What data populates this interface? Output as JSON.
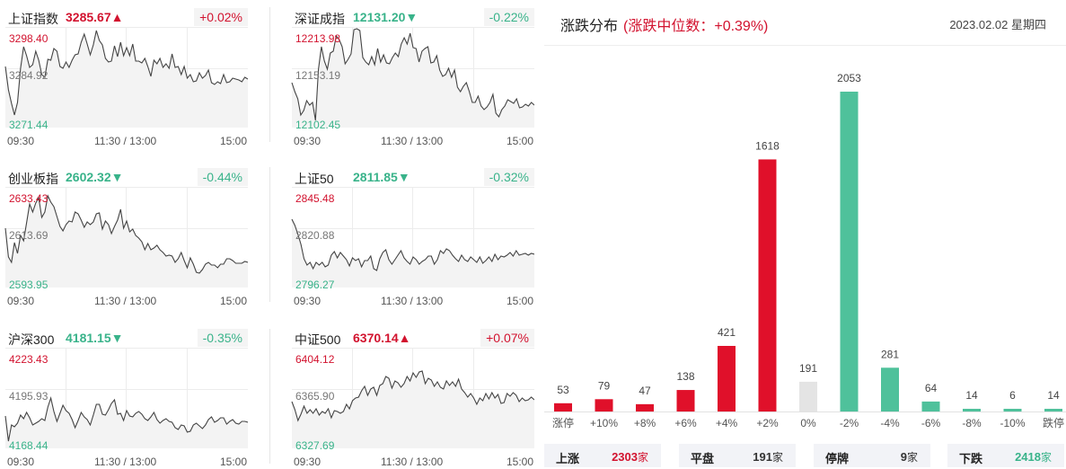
{
  "indices": [
    {
      "name": "上证指数",
      "value": "3285.67",
      "arrow": "▲",
      "change": "+0.02%",
      "dir": "up",
      "high": "3298.40",
      "mid": "3284.92",
      "low": "3271.44",
      "path": [
        44,
        70,
        85,
        98,
        84,
        46,
        22,
        32,
        45,
        42,
        27,
        37,
        53,
        56,
        36,
        37,
        24,
        27,
        44,
        46,
        39,
        45,
        37,
        31,
        30,
        17,
        8,
        19,
        31,
        20,
        4,
        15,
        20,
        35,
        39,
        38,
        21,
        33,
        17,
        32,
        23,
        32,
        19,
        38,
        38,
        40,
        35,
        44,
        55,
        37,
        41,
        35,
        45,
        41,
        46,
        30,
        45,
        44,
        53,
        44,
        57,
        53,
        61,
        60,
        51,
        57,
        54,
        48,
        62,
        64,
        61,
        63,
        53,
        62,
        61,
        57,
        58,
        59,
        61,
        56,
        58
      ]
    },
    {
      "name": "深证成指",
      "value": "12131.20",
      "arrow": "▼",
      "change": "-0.22%",
      "dir": "down",
      "high": "12213.98",
      "mid": "12153.19",
      "low": "12102.45",
      "path": [
        62,
        72,
        80,
        98,
        93,
        82,
        87,
        84,
        104,
        47,
        22,
        38,
        47,
        29,
        27,
        10,
        14,
        22,
        41,
        36,
        30,
        3,
        2,
        4,
        34,
        39,
        42,
        33,
        42,
        24,
        39,
        31,
        40,
        41,
        34,
        29,
        33,
        19,
        12,
        19,
        7,
        23,
        24,
        39,
        27,
        24,
        22,
        40,
        39,
        32,
        48,
        55,
        53,
        46,
        56,
        48,
        67,
        72,
        66,
        62,
        72,
        84,
        84,
        77,
        88,
        92,
        89,
        84,
        75,
        96,
        100,
        92,
        88,
        81,
        83,
        85,
        80,
        90,
        89,
        86,
        88,
        84,
        87
      ]
    },
    {
      "name": "创业板指",
      "value": "2602.32",
      "arrow": "▼",
      "change": "-0.44%",
      "dir": "down",
      "high": "2633.43",
      "mid": "2613.69",
      "low": "2593.95",
      "path": [
        46,
        78,
        84,
        62,
        74,
        54,
        60,
        40,
        19,
        28,
        18,
        12,
        34,
        28,
        10,
        17,
        22,
        33,
        44,
        49,
        42,
        38,
        39,
        28,
        30,
        37,
        45,
        39,
        42,
        39,
        30,
        29,
        47,
        38,
        42,
        52,
        44,
        37,
        25,
        46,
        38,
        50,
        47,
        54,
        57,
        61,
        70,
        63,
        70,
        68,
        65,
        70,
        73,
        77,
        76,
        77,
        84,
        80,
        73,
        82,
        90,
        79,
        86,
        95,
        96,
        92,
        86,
        84,
        87,
        87,
        90,
        86,
        86,
        80,
        80,
        82,
        85,
        85,
        85,
        83,
        84
      ]
    },
    {
      "name": "上证50",
      "value": "2811.85",
      "arrow": "▼",
      "change": "-0.32%",
      "dir": "down",
      "high": "2845.48",
      "mid": "2820.88",
      "low": "2796.27",
      "path": [
        36,
        43,
        53,
        64,
        80,
        87,
        84,
        91,
        84,
        87,
        84,
        89,
        87,
        76,
        72,
        79,
        73,
        77,
        81,
        88,
        79,
        82,
        80,
        89,
        82,
        82,
        77,
        91,
        93,
        80,
        73,
        70,
        81,
        86,
        81,
        76,
        71,
        79,
        83,
        86,
        78,
        81,
        86,
        83,
        81,
        77,
        77,
        86,
        81,
        71,
        74,
        69,
        71,
        76,
        80,
        83,
        76,
        81,
        83,
        78,
        81,
        84,
        78,
        85,
        82,
        78,
        83,
        75,
        81,
        77,
        78,
        76,
        73,
        77,
        71,
        76,
        75,
        74,
        76,
        74,
        75
      ]
    },
    {
      "name": "沪深300",
      "value": "4181.15",
      "arrow": "▼",
      "change": "-0.35%",
      "dir": "down",
      "high": "4223.43",
      "mid": "4195.93",
      "low": "4168.44",
      "path": [
        76,
        104,
        86,
        88,
        84,
        75,
        79,
        72,
        78,
        86,
        84,
        82,
        79,
        81,
        66,
        56,
        71,
        82,
        73,
        64,
        70,
        73,
        80,
        89,
        81,
        72,
        77,
        80,
        86,
        75,
        63,
        63,
        74,
        75,
        69,
        62,
        58,
        74,
        73,
        81,
        70,
        76,
        77,
        73,
        71,
        74,
        79,
        81,
        77,
        72,
        80,
        84,
        81,
        79,
        82,
        83,
        89,
        91,
        86,
        87,
        94,
        93,
        86,
        84,
        87,
        90,
        86,
        80,
        77,
        83,
        81,
        78,
        78,
        85,
        82,
        80,
        84,
        85,
        82,
        82,
        83
      ]
    },
    {
      "name": "中证500",
      "value": "6370.14",
      "arrow": "▲",
      "change": "+0.07%",
      "dir": "up",
      "high": "6404.12",
      "mid": "6365.90",
      "low": "6327.69",
      "path": [
        60,
        69,
        81,
        74,
        65,
        73,
        69,
        73,
        68,
        75,
        71,
        73,
        68,
        78,
        70,
        71,
        73,
        71,
        63,
        68,
        59,
        56,
        55,
        48,
        43,
        53,
        46,
        44,
        53,
        42,
        40,
        32,
        34,
        45,
        37,
        39,
        44,
        40,
        32,
        37,
        28,
        33,
        27,
        26,
        40,
        34,
        36,
        43,
        38,
        44,
        46,
        37,
        42,
        38,
        43,
        35,
        46,
        50,
        55,
        51,
        56,
        63,
        56,
        59,
        51,
        57,
        50,
        56,
        52,
        62,
        61,
        51,
        54,
        50,
        53,
        60,
        56,
        59,
        58,
        55,
        58
      ]
    }
  ],
  "xticks": [
    "09:30",
    "11:30 / 13:00",
    "15:00"
  ],
  "distribution": {
    "title": "涨跌分布",
    "subtitle": "(涨跌中位数：+0.39%)",
    "date": "2023.02.02 星期四",
    "bars": [
      {
        "label": "涨停",
        "value": 53,
        "color": "#e0102a"
      },
      {
        "label": "+10%",
        "value": 79,
        "color": "#e0102a"
      },
      {
        "label": "+8%",
        "value": 47,
        "color": "#e0102a"
      },
      {
        "label": "+6%",
        "value": 138,
        "color": "#e0102a"
      },
      {
        "label": "+4%",
        "value": 421,
        "color": "#e0102a"
      },
      {
        "label": "+2%",
        "value": 1618,
        "color": "#e0102a"
      },
      {
        "label": "0%",
        "value": 191,
        "color": "#e4e4e4"
      },
      {
        "label": "-2%",
        "value": 2053,
        "color": "#4fc19b"
      },
      {
        "label": "-4%",
        "value": 281,
        "color": "#4fc19b"
      },
      {
        "label": "-6%",
        "value": 64,
        "color": "#4fc19b"
      },
      {
        "label": "-8%",
        "value": 14,
        "color": "#4fc19b"
      },
      {
        "label": "-10%",
        "value": 6,
        "color": "#4fc19b"
      },
      {
        "label": "跌停",
        "value": 14,
        "color": "#4fc19b"
      }
    ],
    "summary": [
      {
        "label": "上涨",
        "value": "2303",
        "unit": "家",
        "color": "#d2122e"
      },
      {
        "label": "平盘",
        "value": "191",
        "unit": "家",
        "color": "#333333"
      },
      {
        "label": "停牌",
        "value": "9",
        "unit": "家",
        "color": "#333333"
      },
      {
        "label": "下跌",
        "value": "2418",
        "unit": "家",
        "color": "#39b38a"
      }
    ]
  }
}
